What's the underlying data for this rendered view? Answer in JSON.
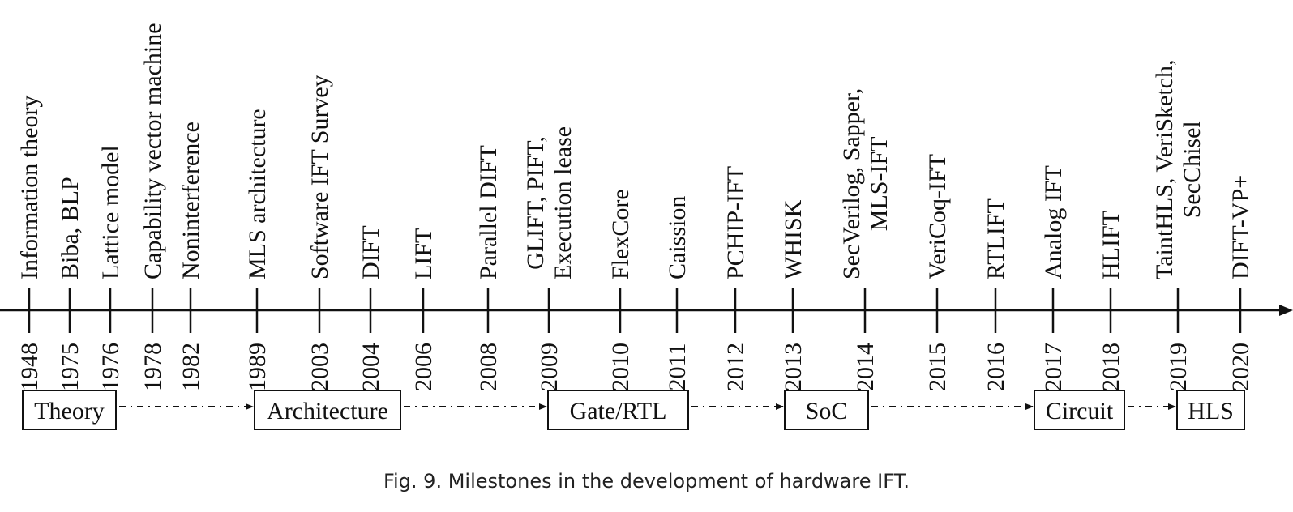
{
  "timeline": {
    "milestones": [
      {
        "year": "1948",
        "lines": [
          "Information theory"
        ]
      },
      {
        "year": "1975",
        "lines": [
          "Biba, BLP"
        ]
      },
      {
        "year": "1976",
        "lines": [
          "Lattice model"
        ]
      },
      {
        "year": "1978",
        "lines": [
          "Capability vector machine"
        ]
      },
      {
        "year": "1982",
        "lines": [
          "Noninterference"
        ]
      },
      {
        "year": "1989",
        "lines": [
          "MLS architecture"
        ]
      },
      {
        "year": "2003",
        "lines": [
          "Software IFT Survey"
        ]
      },
      {
        "year": "2004",
        "lines": [
          "DIFT"
        ]
      },
      {
        "year": "2006",
        "lines": [
          "LIFT"
        ]
      },
      {
        "year": "2008",
        "lines": [
          "Parallel DIFT"
        ]
      },
      {
        "year": "2009",
        "lines": [
          "GLIFT, PIFT,",
          "Execution lease"
        ]
      },
      {
        "year": "2010",
        "lines": [
          "FlexCore"
        ]
      },
      {
        "year": "2011",
        "lines": [
          "Caission"
        ]
      },
      {
        "year": "2012",
        "lines": [
          "PCHIP-IFT"
        ]
      },
      {
        "year": "2013",
        "lines": [
          "WHISK"
        ]
      },
      {
        "year": "2014",
        "lines": [
          "SecVerilog, Sapper,",
          "MLS-IFT"
        ]
      },
      {
        "year": "2015",
        "lines": [
          "VeriCoq-IFT"
        ]
      },
      {
        "year": "2016",
        "lines": [
          "RTLIFT"
        ]
      },
      {
        "year": "2017",
        "lines": [
          "Analog IFT"
        ]
      },
      {
        "year": "2018",
        "lines": [
          "HLIFT"
        ]
      },
      {
        "year": "2019",
        "lines": [
          "TaintHLS, VeriSketch,",
          "SecChisel"
        ]
      },
      {
        "year": "2020",
        "lines": [
          "DIFT-VP+"
        ]
      }
    ]
  },
  "phases": [
    "Theory",
    "Architecture",
    "Gate/RTL",
    "SoC",
    "Circuit",
    "HLS"
  ],
  "caption": "Fig. 9.  Milestones in the development of hardware IFT."
}
